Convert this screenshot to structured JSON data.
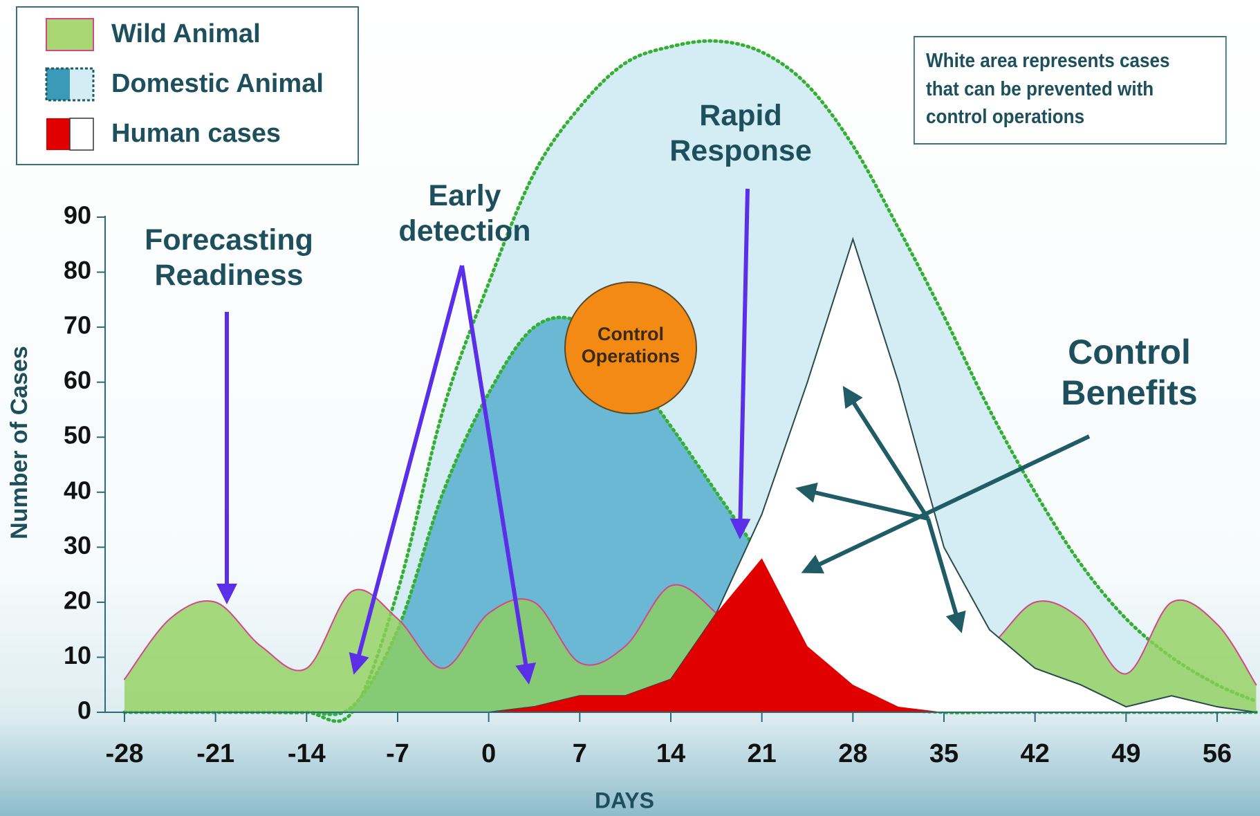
{
  "chart_data": {
    "type": "area",
    "x_label": "DAYS",
    "y_label": "Number of Cases",
    "x": [
      -28,
      -24.5,
      -21,
      -17.5,
      -14,
      -10.5,
      -7,
      -3.5,
      0,
      3.5,
      7,
      10.5,
      14,
      17.5,
      21,
      24.5,
      28,
      31.5,
      35,
      38.5,
      42,
      45.5,
      49,
      52.5,
      56,
      59
    ],
    "xlim": [
      -28,
      59
    ],
    "xticks": [
      -28,
      -21,
      -14,
      -7,
      0,
      7,
      14,
      21,
      28,
      35,
      42,
      49,
      56
    ],
    "ylim": [
      0,
      90
    ],
    "yticks": [
      0,
      10,
      20,
      30,
      40,
      50,
      60,
      70,
      80,
      90
    ],
    "grid": false,
    "series": [
      {
        "name": "Wild Animal",
        "color": "#8fcf5a",
        "outline_color": "#d6458a",
        "smooth": true,
        "values": [
          6,
          17,
          20,
          12,
          8,
          22,
          17,
          8,
          18,
          20,
          9,
          12,
          23,
          18,
          8,
          10,
          20,
          18,
          8,
          12,
          20,
          17,
          7,
          20,
          16,
          5
        ]
      },
      {
        "name": "Domestic Animal",
        "color": "#6bb8d4",
        "light_color": "#d4ecf3",
        "outline_color": "#33b033",
        "smooth": true,
        "values": [
          0,
          0,
          0,
          0,
          0,
          1,
          15,
          40,
          58,
          70,
          71,
          63,
          52,
          40,
          28,
          15,
          6,
          1,
          0,
          0,
          0,
          0,
          0,
          0,
          0,
          0
        ],
        "uncontrolled_values": [
          0,
          0,
          0,
          0,
          0,
          0,
          22,
          55,
          78,
          98,
          110,
          118,
          121,
          122,
          120,
          114,
          103,
          88,
          72,
          55,
          40,
          27,
          17,
          10,
          5,
          2
        ]
      },
      {
        "name": "Human cases",
        "color": "#e00000",
        "light_color": "#ffffff",
        "smooth": false,
        "values": [
          0,
          0,
          0,
          0,
          0,
          0,
          0,
          0,
          0,
          1,
          3,
          3,
          6,
          18,
          28,
          12,
          5,
          1,
          0,
          0,
          0,
          0,
          0,
          0,
          0,
          0
        ],
        "uncontrolled_values": [
          0,
          0,
          0,
          0,
          0,
          0,
          0,
          0,
          0,
          1,
          3,
          3,
          6,
          18,
          36,
          60,
          86,
          60,
          30,
          15,
          8,
          5,
          1,
          3,
          1,
          0
        ]
      }
    ],
    "annotations": [
      {
        "text": "Forecasting\nReadiness"
      },
      {
        "text": "Early\ndetection"
      },
      {
        "text": "Rapid\nResponse"
      },
      {
        "text": "Control\nBenefits"
      },
      {
        "text": "Control\nOperations"
      }
    ],
    "note": "White area represents cases\nthat can be prevented with\ncontrol operations"
  }
}
